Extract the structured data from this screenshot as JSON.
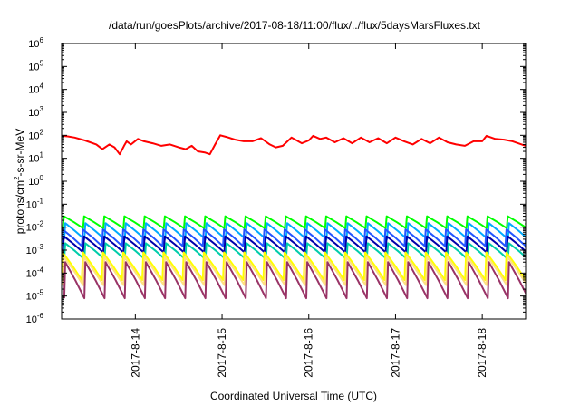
{
  "chart_data": {
    "type": "line",
    "title": "/data/run/goesPlots/archive/2017-08-18/11:00/flux/../flux/5daysMarsFluxes.txt",
    "xlabel": "Coordinated Universal Time (UTC)",
    "ylabel": {
      "before": "protons/cm",
      "sup": "2",
      "after": "-s-sr-MeV"
    },
    "yscale": "log",
    "ylim_exp": [
      -6,
      6
    ],
    "y_ticks": [
      {
        "base": "10",
        "exp": "-6"
      },
      {
        "base": "10",
        "exp": "-5"
      },
      {
        "base": "10",
        "exp": "-4"
      },
      {
        "base": "10",
        "exp": "-3"
      },
      {
        "base": "10",
        "exp": "-2"
      },
      {
        "base": "10",
        "exp": "-1"
      },
      {
        "base": "10",
        "exp": "0"
      },
      {
        "base": "10",
        "exp": "1"
      },
      {
        "base": "10",
        "exp": "2"
      },
      {
        "base": "10",
        "exp": "3"
      },
      {
        "base": "10",
        "exp": "4"
      },
      {
        "base": "10",
        "exp": "5"
      },
      {
        "base": "10",
        "exp": "6"
      }
    ],
    "xlim": [
      13.15,
      18.5
    ],
    "x_ticks": [
      {
        "value": 14,
        "label": "2017-8-14"
      },
      {
        "value": 15,
        "label": "2017-8-15"
      },
      {
        "value": 16,
        "label": "2017-8-16"
      },
      {
        "value": 17,
        "label": "2017-8-17"
      },
      {
        "value": 18,
        "label": "2017-8-18"
      }
    ],
    "grid": false,
    "legend": "none",
    "series": [
      {
        "color": "#ff0000",
        "x": [
          13.15,
          13.22,
          13.3,
          13.42,
          13.55,
          13.62,
          13.7,
          13.76,
          13.82,
          13.87,
          13.9,
          13.95,
          14.03,
          14.1,
          14.2,
          14.3,
          14.4,
          14.5,
          14.58,
          14.65,
          14.72,
          14.8,
          14.86,
          14.92,
          14.98,
          15.05,
          15.15,
          15.25,
          15.35,
          15.45,
          15.55,
          15.62,
          15.7,
          15.8,
          15.92,
          16.0,
          16.05,
          16.13,
          16.2,
          16.3,
          16.4,
          16.5,
          16.6,
          16.7,
          16.8,
          16.9,
          17.0,
          17.1,
          17.2,
          17.3,
          17.4,
          17.5,
          17.6,
          17.7,
          17.8,
          17.9,
          18.0,
          18.05,
          18.15,
          18.25,
          18.35,
          18.5
        ],
        "y": [
          95,
          90,
          80,
          60,
          40,
          25,
          40,
          30,
          15,
          35,
          55,
          40,
          70,
          55,
          45,
          35,
          40,
          30,
          25,
          35,
          20,
          18,
          15,
          40,
          100,
          85,
          65,
          55,
          55,
          75,
          40,
          30,
          35,
          80,
          45,
          60,
          95,
          70,
          80,
          50,
          75,
          45,
          80,
          50,
          75,
          45,
          80,
          55,
          40,
          70,
          45,
          80,
          50,
          40,
          35,
          55,
          55,
          95,
          70,
          65,
          55,
          35
        ]
      },
      {
        "color": "#00ff00",
        "x": [
          13.15,
          18.5
        ],
        "y_min": 0.009,
        "y_max": 0.03,
        "y_end": 0.015,
        "cycles": 23
      },
      {
        "color": "#00aaff",
        "x": [
          13.15,
          18.5
        ],
        "y_min": 0.003,
        "y_max": 0.015,
        "y_end": 0.006,
        "cycles": 23
      },
      {
        "color": "#2255ff",
        "x": [
          13.15,
          18.5
        ],
        "y_min": 0.0015,
        "y_max": 0.008,
        "y_end": 0.003,
        "cycles": 23
      },
      {
        "color": "#0000aa",
        "x": [
          13.15,
          18.5
        ],
        "y_min": 0.0008,
        "y_max": 0.004,
        "y_end": 0.0015,
        "cycles": 23
      },
      {
        "color": "#00ccaa",
        "x": [
          13.15,
          18.5
        ],
        "y_min": 0.0004,
        "y_max": 0.002,
        "y_end": 0.0008,
        "cycles": 23
      },
      {
        "color": "#ffff00",
        "x": [
          13.15,
          18.5
        ],
        "y_min": 5e-05,
        "y_max": 0.0008,
        "y_end": 0.0001,
        "cycles": 23
      },
      {
        "color": "#ffe080",
        "x": [
          13.15,
          18.5
        ],
        "y_min": 3e-05,
        "y_max": 0.0005,
        "y_end": 7e-05,
        "cycles": 23
      },
      {
        "color": "#993366",
        "x": [
          13.15,
          18.5
        ],
        "y_min": 8e-06,
        "y_max": 0.0003,
        "y_end": 2e-05,
        "cycles": 23
      }
    ]
  }
}
